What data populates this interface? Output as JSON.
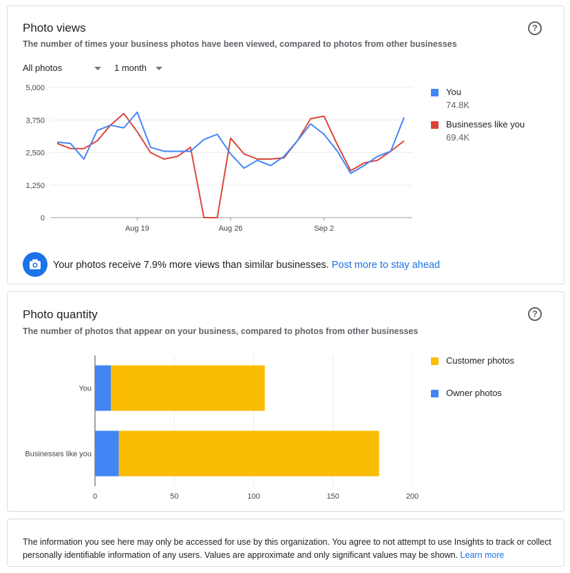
{
  "views": {
    "title": "Photo views",
    "subtitle": "The number of times your business photos have been viewed, compared to photos from other businesses",
    "filter_photos": "All photos",
    "filter_period": "1 month",
    "legend": [
      {
        "label": "You",
        "value": "74.8K",
        "color": "#4285f4"
      },
      {
        "label": "Businesses like you",
        "value": "69.4K",
        "color": "#db4437"
      }
    ],
    "banner_text": "Your photos receive 7.9% more views than similar businesses.",
    "banner_link": "Post more to stay ahead",
    "icon": "camera-icon"
  },
  "quantity": {
    "title": "Photo quantity",
    "subtitle": "The number of photos that appear on your business, compared to photos from other businesses",
    "legend": [
      {
        "label": "Customer photos",
        "color": "#fbbc04"
      },
      {
        "label": "Owner photos",
        "color": "#4285f4"
      }
    ]
  },
  "note": {
    "text": "The information you see here may only be accessed for use by this organization. You agree to not attempt to use Insights to track or collect personally identifiable information of any users. Values are approximate and only significant values may be shown.",
    "link": "Learn more"
  },
  "chart_data": [
    {
      "type": "line",
      "title": "Photo views",
      "x_ticks": [
        "Aug 19",
        "Aug 26",
        "Sep 2"
      ],
      "y_ticks": [
        "0",
        "1,250",
        "2,500",
        "3,750",
        "5,000"
      ],
      "ylim": [
        0,
        5000
      ],
      "grid": true,
      "legend_position": "right",
      "series": [
        {
          "name": "You",
          "color": "#4285f4",
          "values": [
            2900,
            2850,
            2250,
            3350,
            3550,
            3450,
            4050,
            2700,
            2550,
            2550,
            2550,
            3000,
            3200,
            2450,
            1900,
            2200,
            2000,
            2350,
            2950,
            3600,
            3200,
            2550,
            1700,
            2000,
            2350,
            2550,
            3850
          ]
        },
        {
          "name": "Businesses like you",
          "color": "#db4437",
          "values": [
            2850,
            2650,
            2650,
            2950,
            3550,
            4000,
            3300,
            2500,
            2250,
            2350,
            2700,
            0,
            0,
            3050,
            2450,
            2250,
            2250,
            2300,
            2950,
            3800,
            3900,
            2800,
            1800,
            2100,
            2200,
            2550,
            2950
          ]
        }
      ],
      "x_tick_index": [
        6,
        13,
        20
      ]
    },
    {
      "type": "bar",
      "orientation": "horizontal",
      "stacked": true,
      "title": "Photo quantity",
      "categories": [
        "You",
        "Businesses like you"
      ],
      "x_ticks": [
        "0",
        "50",
        "100",
        "150",
        "200"
      ],
      "xlim": [
        0,
        200
      ],
      "grid": true,
      "legend_position": "right",
      "series": [
        {
          "name": "Owner photos",
          "color": "#4285f4",
          "values": [
            10,
            15
          ]
        },
        {
          "name": "Customer photos",
          "color": "#fbbc04",
          "values": [
            97,
            164
          ]
        }
      ]
    }
  ]
}
